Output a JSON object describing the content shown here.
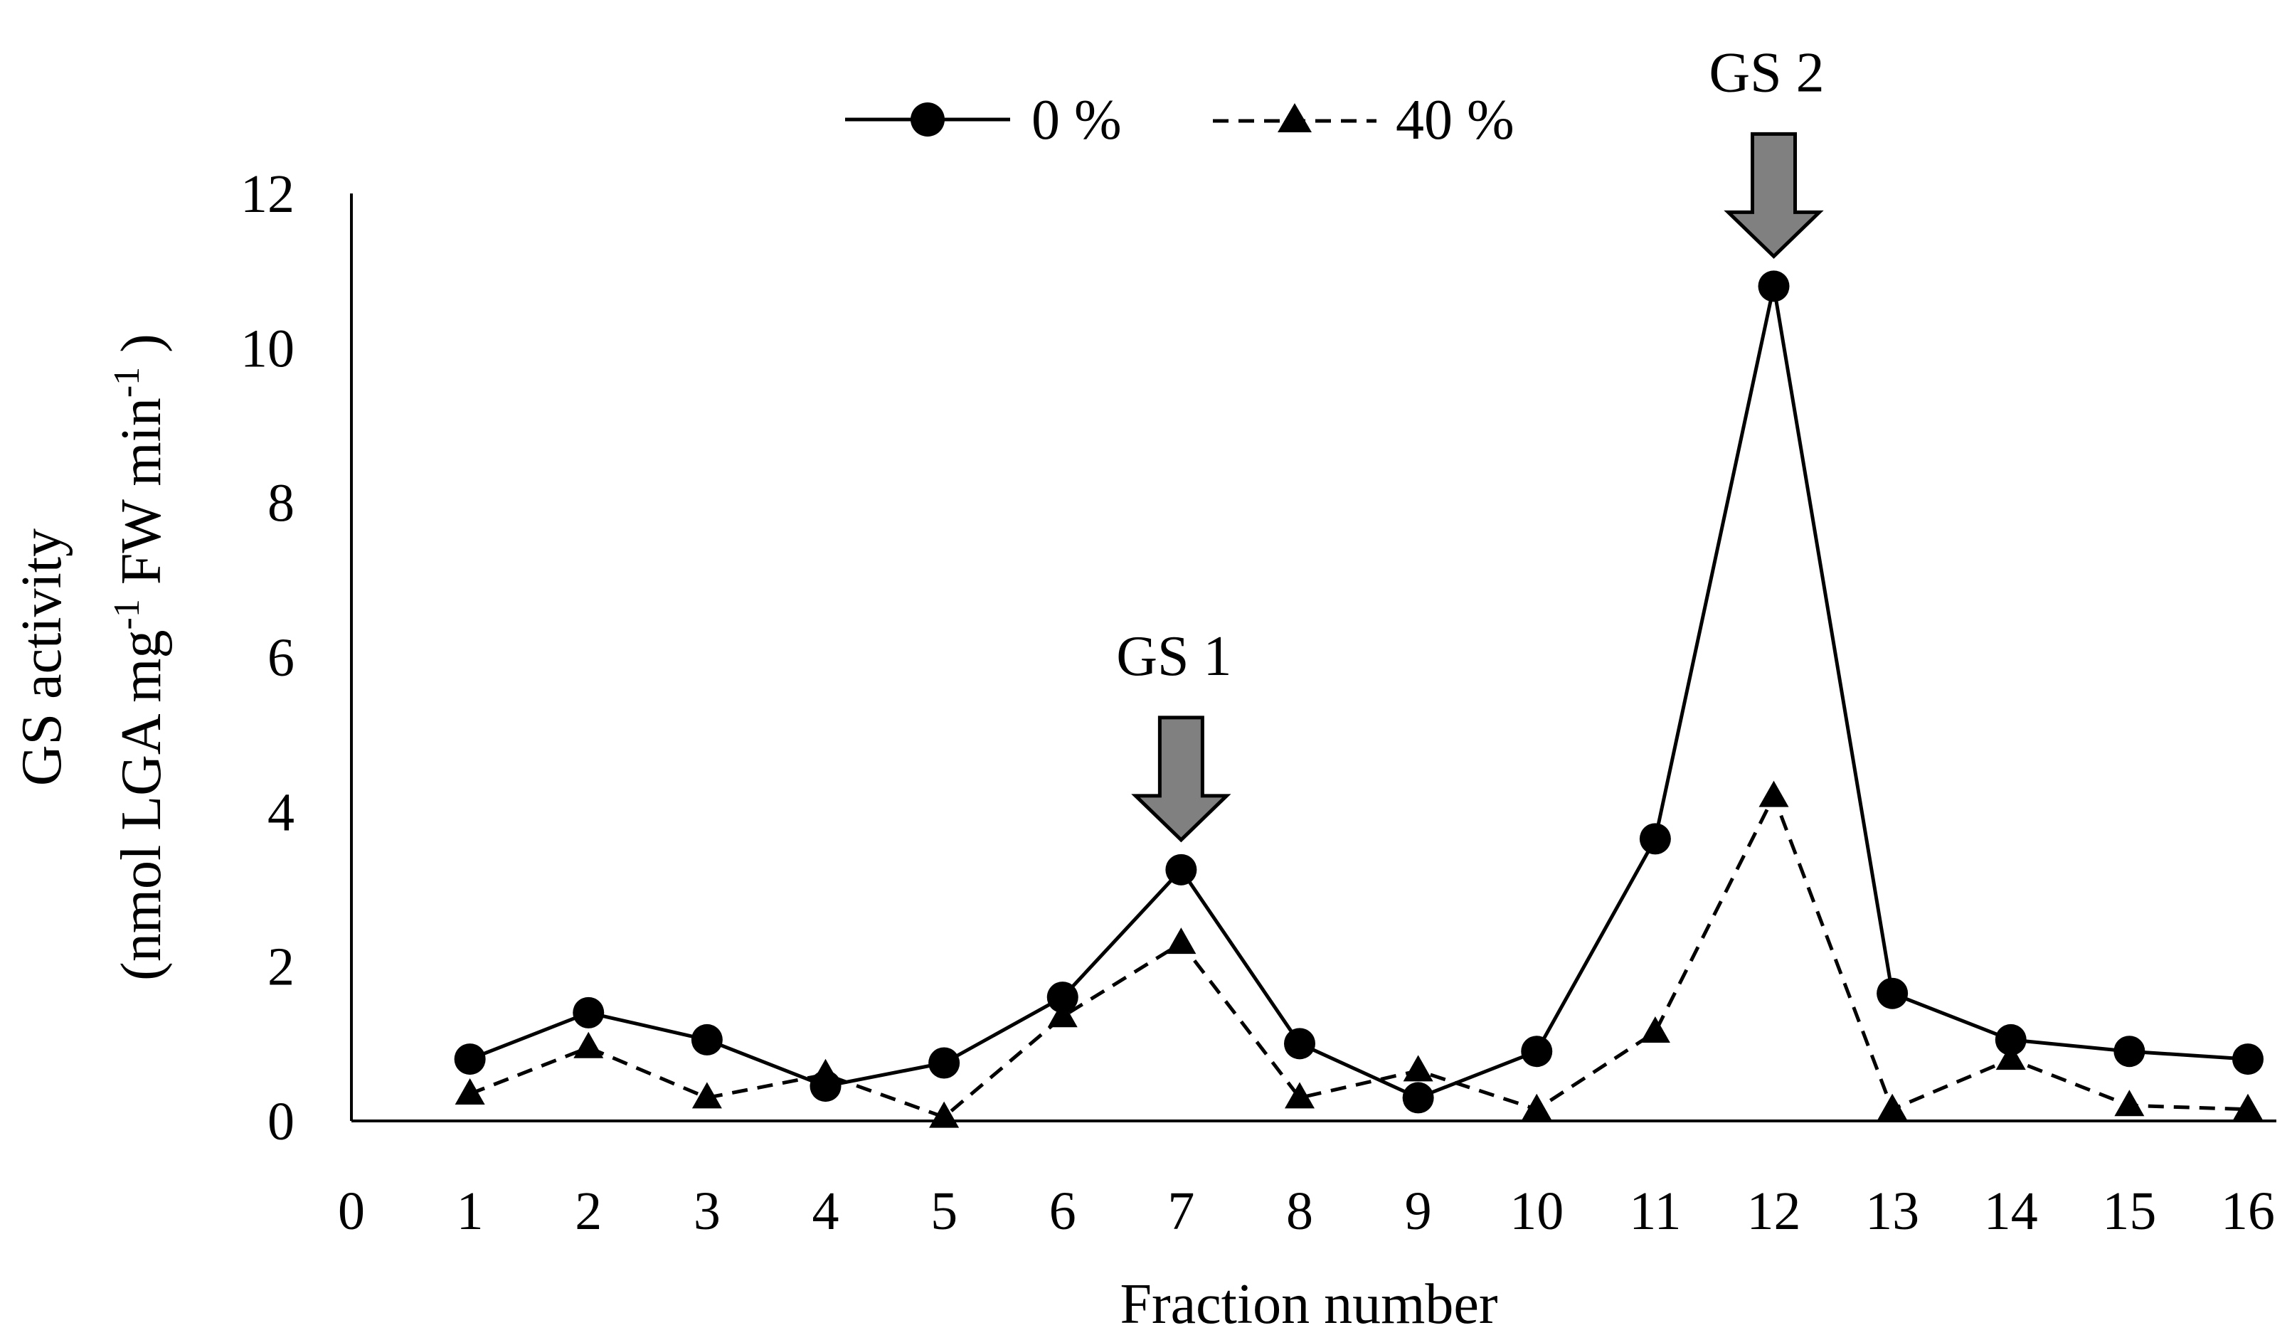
{
  "chart_data": {
    "type": "line",
    "title": "",
    "xlabel": "Fraction number",
    "ylabel_line1": "GS activity",
    "ylabel_line2": {
      "prefix": "(nmol LGA mg",
      "sup1": "-1",
      "middle": " FW min",
      "sup2": "-1",
      "suffix": " )"
    },
    "x_ticks": [
      "0",
      "1",
      "2",
      "3",
      "4",
      "5",
      "6",
      "7",
      "8",
      "9",
      "10",
      "11",
      "12",
      "13",
      "14",
      "15",
      "16"
    ],
    "y_ticks": [
      "0",
      "2",
      "4",
      "6",
      "8",
      "10",
      "12"
    ],
    "xlim": [
      0,
      16
    ],
    "ylim": [
      0,
      12
    ],
    "x": [
      1,
      2,
      3,
      4,
      5,
      6,
      7,
      8,
      9,
      10,
      11,
      12,
      13,
      14,
      15,
      16
    ],
    "series": [
      {
        "name": "0 %",
        "marker": "circle",
        "line_style": "solid",
        "values": [
          0.8,
          1.4,
          1.05,
          0.45,
          0.75,
          1.6,
          3.25,
          1.0,
          0.3,
          0.9,
          3.65,
          10.8,
          1.65,
          1.05,
          0.9,
          0.8
        ]
      },
      {
        "name": "40 %",
        "marker": "triangle",
        "line_style": "dashed",
        "values": [
          0.35,
          0.95,
          0.3,
          0.6,
          0.05,
          1.35,
          2.3,
          0.3,
          0.65,
          0.15,
          1.15,
          4.2,
          0.15,
          0.8,
          0.2,
          0.15
        ]
      }
    ],
    "legend_position": "top-center",
    "annotations": [
      {
        "text": "GS 1",
        "x": 7,
        "target_y": 3.25,
        "arrow_color": "#808080"
      },
      {
        "text": "GS 2",
        "x": 12,
        "target_y": 10.8,
        "arrow_color": "#808080"
      }
    ],
    "grid": false
  }
}
